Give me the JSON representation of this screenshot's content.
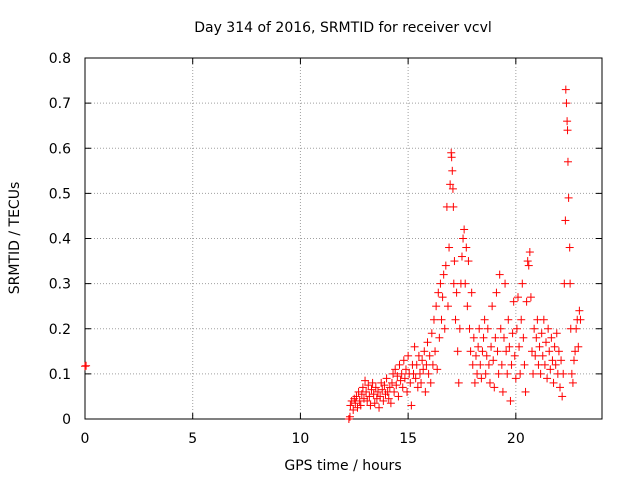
{
  "chart_data": {
    "type": "scatter",
    "title": "Day 314 of 2016, SRMTID for receiver vcvl",
    "xlabel": "GPS time / hours",
    "ylabel": "SRMTID / TECUs",
    "xlim": [
      0,
      24
    ],
    "ylim": [
      0,
      0.8
    ],
    "grid": true,
    "marker": "+",
    "marker_color": "#ff0000",
    "x_ticks": [
      {
        "value": 0,
        "label": "0"
      },
      {
        "value": 5,
        "label": "5"
      },
      {
        "value": 10,
        "label": "10"
      },
      {
        "value": 15,
        "label": "15"
      },
      {
        "value": 20,
        "label": "20"
      }
    ],
    "y_ticks": [
      {
        "value": 0,
        "label": "0"
      },
      {
        "value": 0.1,
        "label": "0.1"
      },
      {
        "value": 0.2,
        "label": "0.2"
      },
      {
        "value": 0.3,
        "label": "0.3"
      },
      {
        "value": 0.4,
        "label": "0.4"
      },
      {
        "value": 0.5,
        "label": "0.5"
      },
      {
        "value": 0.6,
        "label": "0.6"
      },
      {
        "value": 0.7,
        "label": "0.7"
      },
      {
        "value": 0.8,
        "label": "0.8"
      }
    ],
    "series": [
      {
        "name": "SRMTID",
        "points": [
          [
            0.0,
            0.117
          ],
          [
            0.05,
            0.118
          ],
          [
            12.25,
            0.0
          ],
          [
            12.3,
            0.005
          ],
          [
            12.32,
            0.03
          ],
          [
            12.38,
            0.04
          ],
          [
            12.45,
            0.02
          ],
          [
            12.5,
            0.045
          ],
          [
            12.55,
            0.035
          ],
          [
            12.6,
            0.05
          ],
          [
            12.65,
            0.025
          ],
          [
            12.7,
            0.06
          ],
          [
            12.75,
            0.04
          ],
          [
            12.8,
            0.03
          ],
          [
            12.85,
            0.055
          ],
          [
            12.9,
            0.07
          ],
          [
            12.95,
            0.045
          ],
          [
            13.0,
            0.085
          ],
          [
            13.05,
            0.06
          ],
          [
            13.1,
            0.04
          ],
          [
            13.15,
            0.075
          ],
          [
            13.2,
            0.05
          ],
          [
            13.25,
            0.03
          ],
          [
            13.3,
            0.065
          ],
          [
            13.35,
            0.08
          ],
          [
            13.4,
            0.055
          ],
          [
            13.45,
            0.035
          ],
          [
            13.5,
            0.07
          ],
          [
            13.55,
            0.045
          ],
          [
            13.6,
            0.06
          ],
          [
            13.65,
            0.025
          ],
          [
            13.7,
            0.05
          ],
          [
            13.75,
            0.08
          ],
          [
            13.8,
            0.065
          ],
          [
            13.85,
            0.04
          ],
          [
            13.9,
            0.075
          ],
          [
            13.95,
            0.055
          ],
          [
            14.0,
            0.09
          ],
          [
            14.05,
            0.06
          ],
          [
            14.1,
            0.045
          ],
          [
            14.15,
            0.07
          ],
          [
            14.2,
            0.035
          ],
          [
            14.25,
            0.08
          ],
          [
            14.3,
            0.1
          ],
          [
            14.35,
            0.06
          ],
          [
            14.4,
            0.11
          ],
          [
            14.45,
            0.075
          ],
          [
            14.5,
            0.095
          ],
          [
            14.55,
            0.05
          ],
          [
            14.6,
            0.12
          ],
          [
            14.65,
            0.085
          ],
          [
            14.7,
            0.1
          ],
          [
            14.75,
            0.07
          ],
          [
            14.8,
            0.13
          ],
          [
            14.85,
            0.09
          ],
          [
            14.9,
            0.11
          ],
          [
            14.95,
            0.06
          ],
          [
            15.0,
            0.14
          ],
          [
            15.05,
            0.1
          ],
          [
            15.1,
            0.08
          ],
          [
            15.15,
            0.03
          ],
          [
            15.2,
            0.12
          ],
          [
            15.25,
            0.1
          ],
          [
            15.3,
            0.16
          ],
          [
            15.35,
            0.09
          ],
          [
            15.4,
            0.12
          ],
          [
            15.45,
            0.07
          ],
          [
            15.5,
            0.14
          ],
          [
            15.55,
            0.1
          ],
          [
            15.6,
            0.08
          ],
          [
            15.65,
            0.13
          ],
          [
            15.7,
            0.11
          ],
          [
            15.75,
            0.15
          ],
          [
            15.8,
            0.06
          ],
          [
            15.85,
            0.12
          ],
          [
            15.9,
            0.17
          ],
          [
            15.95,
            0.1
          ],
          [
            16.0,
            0.14
          ],
          [
            16.05,
            0.08
          ],
          [
            16.1,
            0.19
          ],
          [
            16.15,
            0.12
          ],
          [
            16.2,
            0.22
          ],
          [
            16.25,
            0.15
          ],
          [
            16.3,
            0.25
          ],
          [
            16.35,
            0.11
          ],
          [
            16.4,
            0.28
          ],
          [
            16.45,
            0.18
          ],
          [
            16.5,
            0.3
          ],
          [
            16.55,
            0.22
          ],
          [
            16.6,
            0.27
          ],
          [
            16.65,
            0.32
          ],
          [
            16.7,
            0.2
          ],
          [
            16.75,
            0.34
          ],
          [
            16.8,
            0.47
          ],
          [
            16.85,
            0.25
          ],
          [
            16.9,
            0.38
          ],
          [
            16.95,
            0.52
          ],
          [
            17.0,
            0.59
          ],
          [
            17.02,
            0.58
          ],
          [
            17.05,
            0.55
          ],
          [
            17.08,
            0.51
          ],
          [
            17.1,
            0.47
          ],
          [
            17.12,
            0.3
          ],
          [
            17.15,
            0.35
          ],
          [
            17.2,
            0.22
          ],
          [
            17.25,
            0.28
          ],
          [
            17.3,
            0.15
          ],
          [
            17.35,
            0.08
          ],
          [
            17.4,
            0.2
          ],
          [
            17.45,
            0.3
          ],
          [
            17.5,
            0.36
          ],
          [
            17.55,
            0.4
          ],
          [
            17.6,
            0.42
          ],
          [
            17.65,
            0.3
          ],
          [
            17.7,
            0.38
          ],
          [
            17.75,
            0.25
          ],
          [
            17.8,
            0.35
          ],
          [
            17.85,
            0.2
          ],
          [
            17.9,
            0.15
          ],
          [
            17.95,
            0.28
          ],
          [
            18.0,
            0.12
          ],
          [
            18.05,
            0.18
          ],
          [
            18.1,
            0.08
          ],
          [
            18.15,
            0.14
          ],
          [
            18.2,
            0.1
          ],
          [
            18.25,
            0.16
          ],
          [
            18.3,
            0.2
          ],
          [
            18.35,
            0.12
          ],
          [
            18.4,
            0.09
          ],
          [
            18.45,
            0.15
          ],
          [
            18.5,
            0.18
          ],
          [
            18.55,
            0.22
          ],
          [
            18.6,
            0.1
          ],
          [
            18.65,
            0.14
          ],
          [
            18.7,
            0.2
          ],
          [
            18.75,
            0.12
          ],
          [
            18.8,
            0.08
          ],
          [
            18.85,
            0.16
          ],
          [
            18.9,
            0.25
          ],
          [
            18.95,
            0.13
          ],
          [
            19.0,
            0.07
          ],
          [
            19.05,
            0.18
          ],
          [
            19.1,
            0.28
          ],
          [
            19.15,
            0.15
          ],
          [
            19.2,
            0.1
          ],
          [
            19.25,
            0.32
          ],
          [
            19.3,
            0.2
          ],
          [
            19.35,
            0.12
          ],
          [
            19.4,
            0.06
          ],
          [
            19.45,
            0.18
          ],
          [
            19.5,
            0.3
          ],
          [
            19.55,
            0.15
          ],
          [
            19.6,
            0.1
          ],
          [
            19.65,
            0.22
          ],
          [
            19.7,
            0.16
          ],
          [
            19.75,
            0.04
          ],
          [
            19.8,
            0.12
          ],
          [
            19.85,
            0.19
          ],
          [
            19.9,
            0.26
          ],
          [
            19.95,
            0.14
          ],
          [
            20.0,
            0.09
          ],
          [
            20.05,
            0.2
          ],
          [
            20.1,
            0.27
          ],
          [
            20.15,
            0.16
          ],
          [
            20.2,
            0.1
          ],
          [
            20.25,
            0.22
          ],
          [
            20.3,
            0.3
          ],
          [
            20.35,
            0.18
          ],
          [
            20.4,
            0.12
          ],
          [
            20.45,
            0.06
          ],
          [
            20.5,
            0.26
          ],
          [
            20.55,
            0.35
          ],
          [
            20.6,
            0.34
          ],
          [
            20.65,
            0.37
          ],
          [
            20.7,
            0.27
          ],
          [
            20.75,
            0.15
          ],
          [
            20.8,
            0.1
          ],
          [
            20.85,
            0.2
          ],
          [
            20.9,
            0.14
          ],
          [
            20.95,
            0.18
          ],
          [
            21.0,
            0.22
          ],
          [
            21.05,
            0.12
          ],
          [
            21.1,
            0.16
          ],
          [
            21.15,
            0.1
          ],
          [
            21.2,
            0.19
          ],
          [
            21.25,
            0.14
          ],
          [
            21.3,
            0.22
          ],
          [
            21.35,
            0.12
          ],
          [
            21.4,
            0.17
          ],
          [
            21.45,
            0.09
          ],
          [
            21.5,
            0.2
          ],
          [
            21.55,
            0.15
          ],
          [
            21.6,
            0.11
          ],
          [
            21.65,
            0.18
          ],
          [
            21.7,
            0.13
          ],
          [
            21.75,
            0.08
          ],
          [
            21.8,
            0.16
          ],
          [
            21.85,
            0.12
          ],
          [
            21.9,
            0.19
          ],
          [
            21.95,
            0.1
          ],
          [
            22.0,
            0.15
          ],
          [
            22.05,
            0.07
          ],
          [
            22.1,
            0.13
          ],
          [
            22.15,
            0.05
          ],
          [
            22.2,
            0.1
          ],
          [
            22.25,
            0.3
          ],
          [
            22.3,
            0.44
          ],
          [
            22.32,
            0.73
          ],
          [
            22.35,
            0.7
          ],
          [
            22.38,
            0.66
          ],
          [
            22.4,
            0.64
          ],
          [
            22.42,
            0.57
          ],
          [
            22.45,
            0.49
          ],
          [
            22.5,
            0.38
          ],
          [
            22.52,
            0.3
          ],
          [
            22.55,
            0.2
          ],
          [
            22.6,
            0.1
          ],
          [
            22.65,
            0.08
          ],
          [
            22.7,
            0.13
          ],
          [
            22.75,
            0.15
          ],
          [
            22.8,
            0.2
          ],
          [
            22.85,
            0.22
          ],
          [
            22.9,
            0.16
          ],
          [
            22.95,
            0.24
          ],
          [
            23.0,
            0.22
          ]
        ]
      }
    ]
  }
}
